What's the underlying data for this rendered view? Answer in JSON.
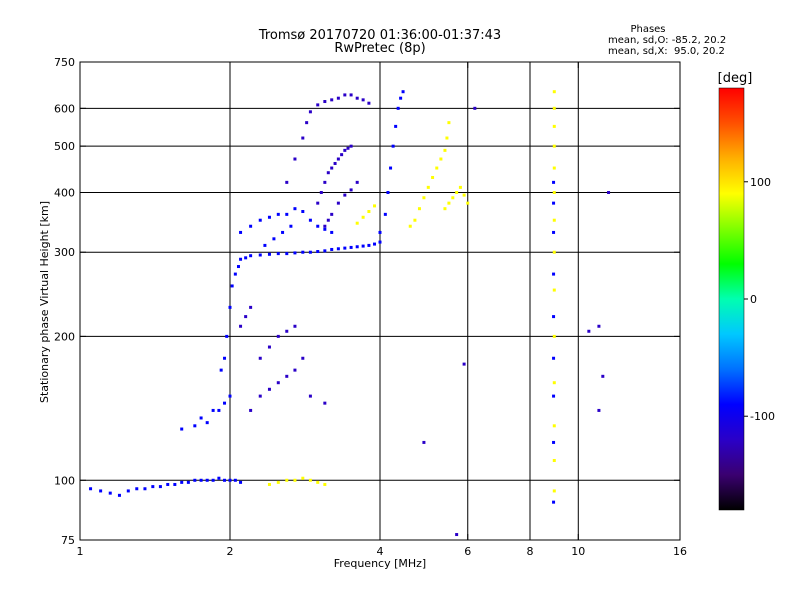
{
  "title": "Tromsø 20170720 01:36:00-01:37:43",
  "subtitle": "RwPretec (8p)",
  "phases_box": {
    "heading": "Phases",
    "line_o": "mean, sd,O: -85.2, 20.2",
    "line_x": "mean, sd,X:  95.0, 20.2"
  },
  "chart_data": {
    "type": "scatter",
    "title": "Tromsø 20170720 01:36:00-01:37:43",
    "subtitle": "RwPretec (8p)",
    "xlabel": "Frequency [MHz]",
    "ylabel": "Stationary phase Virtual Height [km]",
    "x_scale": "log",
    "y_scale": "log",
    "xlim": [
      1,
      16
    ],
    "ylim": [
      75,
      750
    ],
    "x_ticks": [
      1,
      2,
      4,
      6,
      8,
      10,
      16
    ],
    "x_tick_labels": [
      "1",
      "2",
      "4",
      "6",
      "8",
      "10",
      "16"
    ],
    "y_ticks": [
      75,
      100,
      200,
      300,
      400,
      500,
      600,
      750
    ],
    "y_tick_labels": [
      "75",
      "100",
      "200",
      "300",
      "400",
      "500",
      "600",
      "750"
    ],
    "grid": true,
    "colorbar": {
      "label": "[deg]",
      "range": [
        -180,
        180
      ],
      "ticks": [
        100,
        0,
        -100
      ],
      "tick_labels": [
        "100",
        "0",
        "-100"
      ],
      "colors": [
        "#000000",
        "#3a0070",
        "#2a00c8",
        "#0000ff",
        "#0070ff",
        "#00c8ff",
        "#00ffb0",
        "#00ff00",
        "#80ff00",
        "#ffff00",
        "#ffb000",
        "#ff5000",
        "#ff0000"
      ]
    },
    "series": [
      {
        "points": [
          [
            1.05,
            96
          ],
          [
            1.1,
            95
          ],
          [
            1.15,
            94
          ],
          [
            1.2,
            93
          ],
          [
            1.25,
            95
          ],
          [
            1.3,
            96
          ],
          [
            1.35,
            96
          ],
          [
            1.4,
            97
          ],
          [
            1.45,
            97
          ],
          [
            1.5,
            98
          ],
          [
            1.55,
            98
          ],
          [
            1.6,
            99
          ],
          [
            1.65,
            99
          ],
          [
            1.7,
            100
          ],
          [
            1.75,
            100
          ],
          [
            1.8,
            100
          ],
          [
            1.85,
            100
          ],
          [
            1.9,
            101
          ],
          [
            1.95,
            100
          ],
          [
            2.0,
            100
          ],
          [
            2.05,
            100
          ],
          [
            2.1,
            99
          ]
        ],
        "phase": -95
      },
      {
        "points": [
          [
            1.6,
            128
          ],
          [
            1.7,
            130
          ],
          [
            1.75,
            135
          ],
          [
            1.8,
            132
          ],
          [
            1.85,
            140
          ],
          [
            1.9,
            140
          ],
          [
            1.95,
            145
          ],
          [
            2.0,
            150
          ],
          [
            1.92,
            170
          ],
          [
            1.95,
            180
          ],
          [
            1.97,
            200
          ],
          [
            2.0,
            230
          ],
          [
            2.02,
            255
          ],
          [
            2.05,
            270
          ],
          [
            2.08,
            280
          ],
          [
            2.1,
            290
          ],
          [
            2.15,
            292
          ],
          [
            2.2,
            295
          ],
          [
            2.3,
            296
          ],
          [
            2.4,
            297
          ],
          [
            2.5,
            298
          ],
          [
            2.6,
            298
          ],
          [
            2.7,
            299
          ],
          [
            2.8,
            300
          ],
          [
            2.9,
            300
          ],
          [
            3.0,
            301
          ],
          [
            3.1,
            302
          ],
          [
            3.2,
            304
          ],
          [
            3.3,
            305
          ],
          [
            3.4,
            306
          ],
          [
            3.5,
            307
          ],
          [
            3.6,
            308
          ],
          [
            3.7,
            309
          ],
          [
            3.8,
            310
          ],
          [
            3.9,
            312
          ],
          [
            4.0,
            315
          ]
        ],
        "phase": -105
      },
      {
        "points": [
          [
            2.2,
            140
          ],
          [
            2.3,
            150
          ],
          [
            2.4,
            155
          ],
          [
            2.5,
            160
          ],
          [
            2.6,
            165
          ],
          [
            2.7,
            170
          ],
          [
            2.8,
            180
          ],
          [
            2.3,
            180
          ],
          [
            2.4,
            190
          ],
          [
            2.5,
            200
          ],
          [
            2.6,
            205
          ],
          [
            2.7,
            210
          ],
          [
            2.1,
            210
          ],
          [
            2.15,
            220
          ],
          [
            2.2,
            230
          ]
        ],
        "phase": -110
      },
      {
        "points": [
          [
            2.1,
            330
          ],
          [
            2.2,
            340
          ],
          [
            2.3,
            350
          ],
          [
            2.4,
            355
          ],
          [
            2.5,
            360
          ],
          [
            2.6,
            360
          ],
          [
            2.7,
            370
          ],
          [
            2.8,
            365
          ],
          [
            2.9,
            350
          ],
          [
            3.0,
            340
          ],
          [
            3.1,
            335
          ],
          [
            3.2,
            330
          ],
          [
            2.35,
            310
          ],
          [
            2.45,
            320
          ],
          [
            2.55,
            330
          ],
          [
            2.65,
            340
          ]
        ],
        "phase": -92
      },
      {
        "points": [
          [
            3.0,
            380
          ],
          [
            3.05,
            400
          ],
          [
            3.1,
            420
          ],
          [
            3.15,
            440
          ],
          [
            3.2,
            450
          ],
          [
            3.25,
            460
          ],
          [
            3.3,
            470
          ],
          [
            3.35,
            480
          ],
          [
            3.4,
            490
          ],
          [
            3.45,
            495
          ],
          [
            3.5,
            500
          ],
          [
            3.1,
            340
          ],
          [
            3.15,
            350
          ],
          [
            3.2,
            360
          ],
          [
            3.3,
            380
          ],
          [
            3.4,
            395
          ],
          [
            3.5,
            405
          ],
          [
            3.6,
            420
          ]
        ],
        "phase": -125
      },
      {
        "points": [
          [
            2.6,
            420
          ],
          [
            2.7,
            470
          ],
          [
            2.8,
            520
          ],
          [
            2.85,
            560
          ],
          [
            2.9,
            590
          ],
          [
            3.0,
            610
          ],
          [
            3.1,
            620
          ],
          [
            3.2,
            625
          ],
          [
            3.3,
            630
          ],
          [
            3.4,
            640
          ],
          [
            3.5,
            640
          ],
          [
            3.6,
            630
          ],
          [
            3.7,
            625
          ],
          [
            3.8,
            615
          ]
        ],
        "phase": -120
      },
      {
        "points": [
          [
            4.0,
            330
          ],
          [
            4.1,
            360
          ],
          [
            4.15,
            400
          ],
          [
            4.2,
            450
          ],
          [
            4.25,
            500
          ],
          [
            4.3,
            550
          ],
          [
            4.35,
            600
          ],
          [
            4.4,
            630
          ],
          [
            4.45,
            650
          ]
        ],
        "phase": -90
      },
      {
        "points": [
          [
            3.6,
            345
          ],
          [
            3.7,
            355
          ],
          [
            3.8,
            365
          ],
          [
            3.9,
            375
          ],
          [
            4.6,
            340
          ],
          [
            4.7,
            350
          ],
          [
            4.8,
            370
          ],
          [
            4.9,
            390
          ],
          [
            5.0,
            410
          ],
          [
            5.1,
            430
          ],
          [
            5.2,
            450
          ],
          [
            5.3,
            470
          ],
          [
            5.4,
            490
          ],
          [
            5.45,
            520
          ],
          [
            5.5,
            560
          ],
          [
            5.4,
            370
          ],
          [
            5.5,
            380
          ],
          [
            5.6,
            390
          ],
          [
            5.7,
            400
          ],
          [
            5.8,
            410
          ],
          [
            5.9,
            395
          ],
          [
            6.0,
            380
          ]
        ],
        "phase": 95
      },
      {
        "points": [
          [
            2.4,
            98
          ],
          [
            2.5,
            99
          ],
          [
            2.6,
            100
          ],
          [
            2.7,
            100
          ],
          [
            2.8,
            101
          ],
          [
            2.9,
            100
          ],
          [
            3.0,
            99
          ],
          [
            3.1,
            98
          ]
        ],
        "phase": 95
      },
      {
        "points": [
          [
            8.95,
            95
          ],
          [
            8.95,
            110
          ],
          [
            8.95,
            130
          ],
          [
            8.95,
            160
          ],
          [
            8.95,
            200
          ],
          [
            8.95,
            250
          ],
          [
            8.95,
            300
          ],
          [
            8.95,
            350
          ],
          [
            8.95,
            400
          ],
          [
            8.95,
            450
          ],
          [
            8.95,
            500
          ],
          [
            8.95,
            550
          ],
          [
            8.95,
            600
          ],
          [
            8.95,
            650
          ]
        ],
        "phase": 95
      },
      {
        "points": [
          [
            8.92,
            90
          ],
          [
            8.92,
            120
          ],
          [
            8.92,
            150
          ],
          [
            8.92,
            180
          ],
          [
            8.92,
            220
          ],
          [
            8.92,
            270
          ],
          [
            8.92,
            330
          ],
          [
            8.92,
            380
          ],
          [
            8.92,
            420
          ]
        ],
        "phase": -100
      },
      {
        "points": [
          [
            6.2,
            600
          ],
          [
            5.9,
            175
          ],
          [
            5.7,
            77
          ],
          [
            11.0,
            140
          ],
          [
            11.2,
            165
          ],
          [
            11.5,
            400
          ],
          [
            10.5,
            205
          ],
          [
            11.0,
            210
          ],
          [
            2.9,
            150
          ],
          [
            3.1,
            145
          ],
          [
            4.9,
            120
          ]
        ],
        "phase": -110
      }
    ]
  }
}
